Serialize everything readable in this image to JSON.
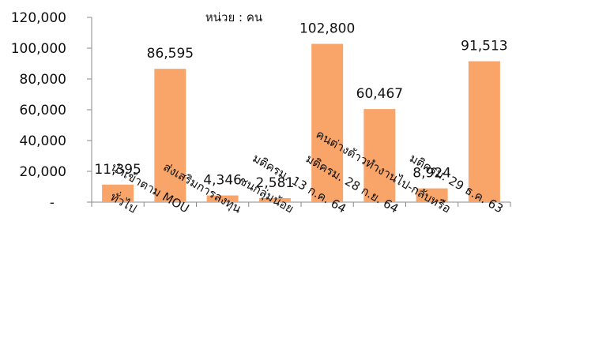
{
  "chart_data": {
    "type": "bar",
    "unit_label": "หน่วย : คน",
    "categories": [
      "ทั่วไป",
      "นำเข้าตาม MOU",
      "ส่งเสริมการลงทุน",
      "ชนกลุ่มน้อย",
      "มติครม. 13 ก.ค. 64",
      "มติครม. 28 ก.ย. 64",
      "คนต่างด้าวทำงานไป-กลับหรือ",
      "มติครม. 29 ธ.ค. 63"
    ],
    "values": [
      11395,
      86595,
      4346,
      2581,
      102800,
      60467,
      8924,
      91513
    ],
    "data_labels": [
      "11,395",
      "86,595",
      "4,346",
      "2,581",
      "102,800",
      "60,467",
      "8,924",
      "91,513"
    ],
    "yticks": [
      "-",
      "20,000",
      "40,000",
      "60,000",
      "80,000",
      "100,000",
      "120,000"
    ],
    "ylim": [
      0,
      120000
    ],
    "grid": false,
    "bar_color": "#F9A56A"
  }
}
